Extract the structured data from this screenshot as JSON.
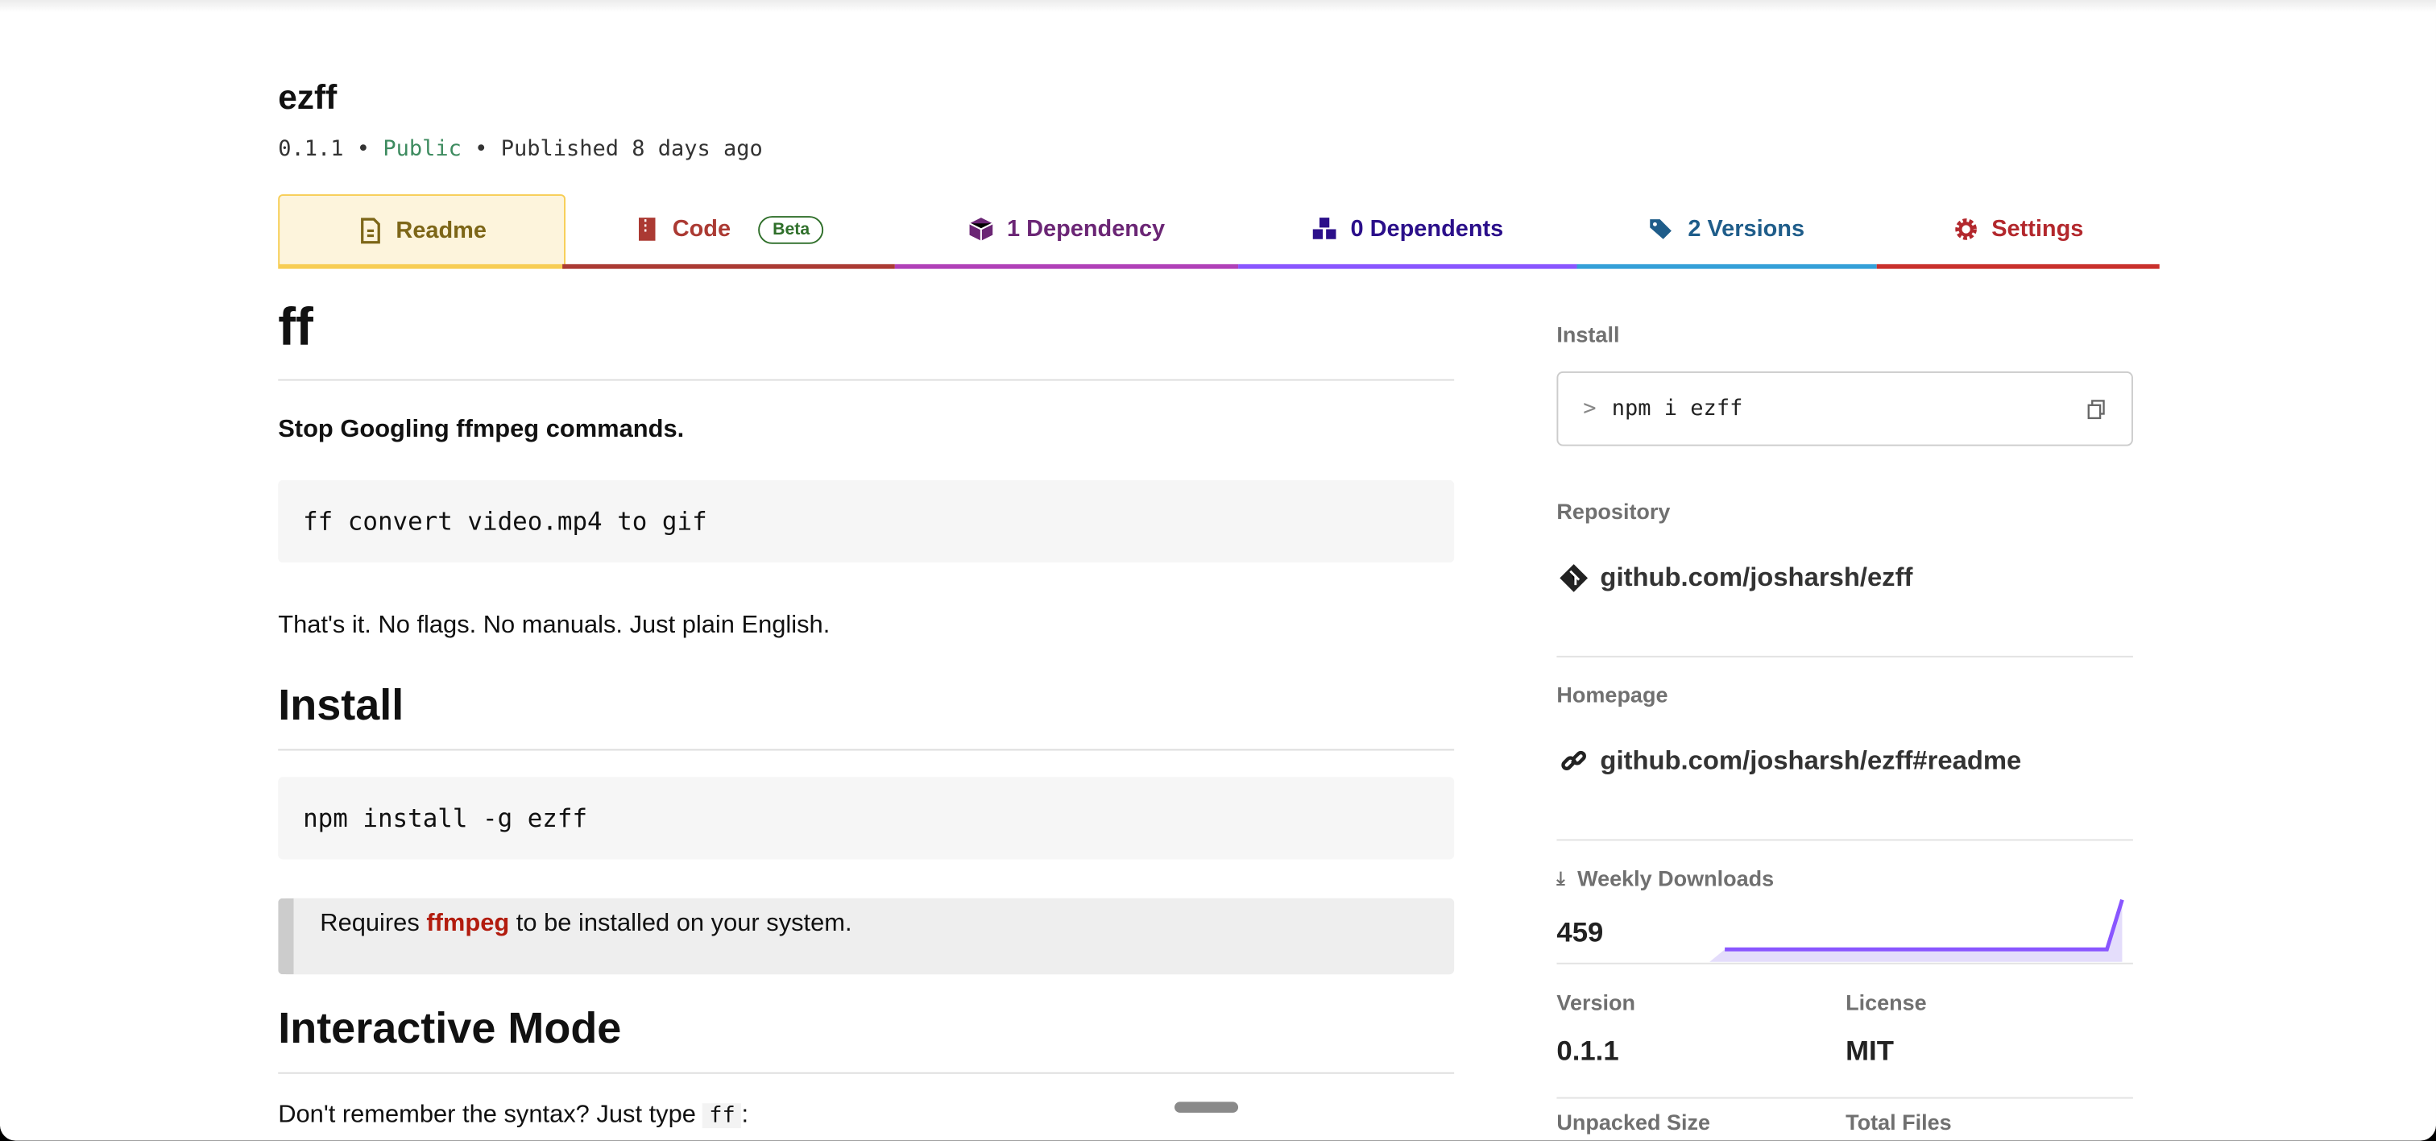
{
  "package": {
    "name": "ezff",
    "version": "0.1.1",
    "visibility": "Public",
    "published": "Published 8 days ago",
    "separator": "•"
  },
  "tabs": [
    {
      "label": "Readme",
      "color": "#7d6618",
      "underline": "#f7cd54",
      "icon": "file-icon",
      "active": true
    },
    {
      "label": "Code",
      "color": "#ab3a33",
      "underline": "#ab3a33",
      "icon": "zip-file-icon",
      "badge": "Beta"
    },
    {
      "label": "1 Dependency",
      "color": "#6b2675",
      "underline": "#b040b8",
      "icon": "box-icon"
    },
    {
      "label": "0 Dependents",
      "color": "#2b0f8a",
      "underline": "#8956ff",
      "icon": "boxes-icon"
    },
    {
      "label": "2 Versions",
      "color": "#1f5d8a",
      "underline": "#34a0d8",
      "icon": "tags-icon"
    },
    {
      "label": "Settings",
      "color": "#b3282d",
      "underline": "#c9302c",
      "icon": "gear-icon"
    }
  ],
  "readme": {
    "h1": "ff",
    "tagline": "Stop Googling ffmpeg commands.",
    "code1": "ff convert video.mp4 to gif",
    "para1": "That's it. No flags. No manuals. Just plain English.",
    "h2_install": "Install",
    "code2": "npm install -g ezff",
    "note_pre": "Requires ",
    "note_link": "ffmpeg",
    "note_post": " to be installed on your system.",
    "h2_interactive": "Interactive Mode",
    "para2_pre": "Don't remember the syntax? Just type ",
    "para2_code": "ff",
    "para2_post": ":"
  },
  "sidebar": {
    "install_label": "Install",
    "install_cmd": "npm i ezff",
    "prompt": ">",
    "repository_label": "Repository",
    "repository": "github.com/josharsh/ezff",
    "homepage_label": "Homepage",
    "homepage": "github.com/josharsh/ezff#readme",
    "downloads_label": "Weekly Downloads",
    "downloads": "459",
    "version_label": "Version",
    "version": "0.1.1",
    "license_label": "License",
    "license": "MIT",
    "unpacked_label": "Unpacked Size",
    "files_label": "Total Files"
  },
  "chart_data": {
    "type": "area",
    "series": [
      {
        "values": [
          0,
          0,
          0,
          0,
          0,
          0,
          0,
          0,
          0,
          0,
          0,
          1,
          1,
          1,
          1,
          1,
          1,
          1,
          1,
          1,
          1,
          1,
          1,
          1,
          1,
          1,
          1,
          1,
          1,
          1,
          1,
          1,
          1,
          1,
          1,
          1,
          1,
          459
        ]
      }
    ],
    "color": "#8956ff"
  }
}
